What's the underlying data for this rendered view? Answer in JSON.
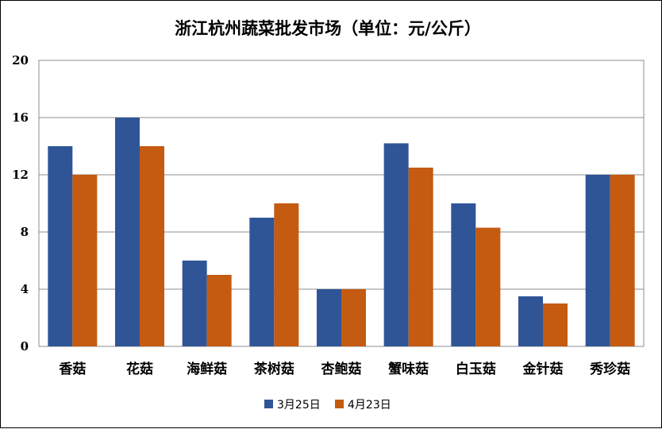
{
  "chart_data": {
    "type": "bar",
    "title": "浙江杭州蔬菜批发市场（单位：元/公斤）",
    "categories": [
      "香菇",
      "花菇",
      "海鲜菇",
      "茶树菇",
      "杏鲍菇",
      "蟹味菇",
      "白玉菇",
      "金针菇",
      "秀珍菇"
    ],
    "series": [
      {
        "name": "3月25日",
        "color": "#2f5597",
        "values": [
          14,
          16,
          6,
          9,
          4,
          14.2,
          10,
          3.5,
          12
        ]
      },
      {
        "name": "4月23日",
        "color": "#c55a11",
        "values": [
          12,
          14,
          5,
          10,
          4,
          12.5,
          8.3,
          3,
          12
        ]
      }
    ],
    "ylim": [
      0,
      20
    ],
    "yticks": [
      "0",
      "4",
      "8",
      "12",
      "16",
      "20"
    ],
    "xlabel": "",
    "ylabel": "",
    "grid": true,
    "legend_position": "bottom"
  }
}
